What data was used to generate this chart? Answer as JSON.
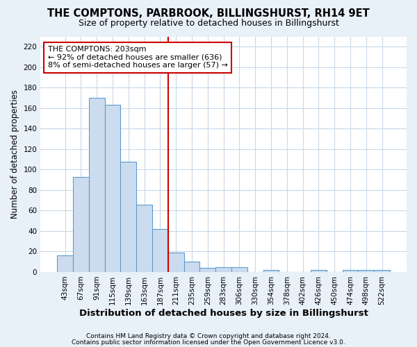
{
  "title": "THE COMPTONS, PARBROOK, BILLINGSHURST, RH14 9ET",
  "subtitle": "Size of property relative to detached houses in Billingshurst",
  "xlabel": "Distribution of detached houses by size in Billingshurst",
  "ylabel": "Number of detached properties",
  "footer1": "Contains HM Land Registry data © Crown copyright and database right 2024.",
  "footer2": "Contains public sector information licensed under the Open Government Licence v3.0.",
  "categories": [
    "43sqm",
    "67sqm",
    "91sqm",
    "115sqm",
    "139sqm",
    "163sqm",
    "187sqm",
    "211sqm",
    "235sqm",
    "259sqm",
    "283sqm",
    "306sqm",
    "330sqm",
    "354sqm",
    "378sqm",
    "402sqm",
    "426sqm",
    "450sqm",
    "474sqm",
    "498sqm",
    "522sqm"
  ],
  "values": [
    16,
    93,
    170,
    163,
    108,
    66,
    42,
    19,
    10,
    4,
    5,
    5,
    0,
    2,
    0,
    0,
    2,
    0,
    2,
    2,
    2
  ],
  "bar_color": "#ccdcee",
  "bar_edge_color": "#5b9bd5",
  "bar_width": 1.0,
  "ref_line_color": "#cc0000",
  "ref_line_label": "THE COMPTONS: 203sqm",
  "annotation_line1": "← 92% of detached houses are smaller (636)",
  "annotation_line2": "8% of semi-detached houses are larger (57) →",
  "box_color": "#cc0000",
  "ylim": [
    0,
    230
  ],
  "yticks": [
    0,
    20,
    40,
    60,
    80,
    100,
    120,
    140,
    160,
    180,
    200,
    220
  ],
  "plot_bg_color": "#ffffff",
  "fig_bg_color": "#e8f0f8",
  "grid_color": "#c8d8e8",
  "figsize": [
    6.0,
    5.0
  ],
  "dpi": 100,
  "title_fontsize": 10.5,
  "subtitle_fontsize": 9,
  "xlabel_fontsize": 9.5,
  "ylabel_fontsize": 8.5,
  "tick_fontsize": 7.5,
  "footer_fontsize": 6.5,
  "annotation_fontsize": 8.0
}
